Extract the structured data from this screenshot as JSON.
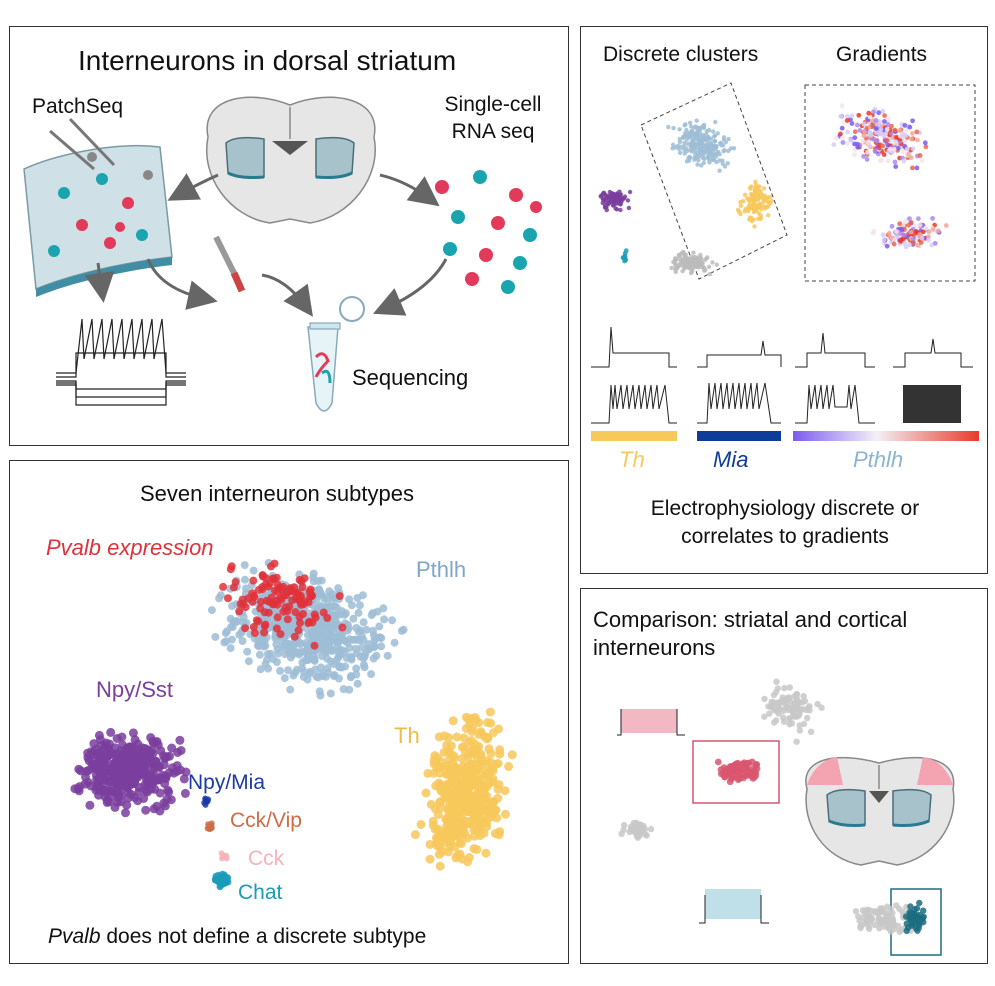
{
  "panel_top_left": {
    "title": "Interneurons in dorsal striatum",
    "patchseq_label": "PatchSeq",
    "scrnaseq_label_line1": "Single-cell",
    "scrnaseq_label_line2": "RNA seq",
    "sequencing_label": "Sequencing"
  },
  "panel_bottom_left": {
    "title": "Seven interneuron subtypes",
    "pvalb_overlay_label": "Pvalb expression",
    "caption_italic": "Pvalb",
    "caption_rest": " does not define a discrete subtype",
    "clusters": [
      {
        "label": "Pthlh",
        "color": "#9dbdd6"
      },
      {
        "label": "Npy/Sst",
        "color": "#7a3e9d"
      },
      {
        "label": "Th",
        "color": "#f7c85a"
      },
      {
        "label": "Npy/Mia",
        "color": "#1a3aa8"
      },
      {
        "label": "Cck/Vip",
        "color": "#d06b45"
      },
      {
        "label": "Cck",
        "color": "#f5b3b8"
      },
      {
        "label": "Chat",
        "color": "#1a9cb8"
      }
    ],
    "pvalb_color": "#e0313a"
  },
  "panel_top_right": {
    "heading_discrete": "Discrete clusters",
    "heading_gradients": "Gradients",
    "marker_th": "Th",
    "marker_mia": "Mia",
    "marker_pthlh": "Pthlh",
    "caption_line1": "Electrophysiology discrete or",
    "caption_line2": "correlates to gradients",
    "colors": {
      "th": "#f7c85a",
      "mia": "#0f3c9a",
      "pthlh_text": "#8cb4cf",
      "gradient_low": "#7b5cf0",
      "gradient_high": "#e83a2a"
    }
  },
  "panel_bottom_right": {
    "title_line1": "Comparison: striatal and cortical",
    "title_line2": "interneurons",
    "colors": {
      "gray": "#c8c8c8",
      "pink": "#d9566f",
      "teal": "#1b6d80"
    }
  }
}
